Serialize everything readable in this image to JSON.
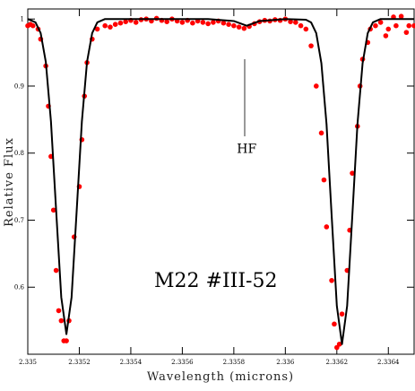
{
  "chart_data": {
    "type": "line",
    "xlabel": "Wavelength (microns)",
    "ylabel": "Relative Flux",
    "annotations": [
      {
        "text": "HF",
        "x": 2.33585,
        "y": 0.8
      },
      {
        "text": "M22 #III-52",
        "x": 2.33573,
        "y": 0.6
      }
    ],
    "xlim": [
      2.335,
      2.3365
    ],
    "ylim": [
      0.5,
      1.015
    ],
    "xticks": [
      2.335,
      2.3352,
      2.3354,
      2.3356,
      2.3358,
      2.336,
      2.3362,
      2.3364
    ],
    "yticks": [
      0.6,
      0.7,
      0.8,
      0.9,
      1
    ],
    "series": [
      {
        "style": "markers",
        "color": "#ff0000",
        "x": [
          2.335,
          2.33501,
          2.33502,
          2.33504,
          2.33505,
          2.33507,
          2.33508,
          2.33509,
          2.3351,
          2.33511,
          2.33512,
          2.33513,
          2.33514,
          2.33515,
          2.33516,
          2.33518,
          2.3352,
          2.33521,
          2.33522,
          2.33523,
          2.33525,
          2.33527,
          2.3353,
          2.33532,
          2.33534,
          2.33536,
          2.33538,
          2.3354,
          2.33542,
          2.33544,
          2.33546,
          2.33548,
          2.3355,
          2.33552,
          2.33554,
          2.33556,
          2.33558,
          2.3356,
          2.33562,
          2.33564,
          2.33566,
          2.33568,
          2.3357,
          2.33572,
          2.33574,
          2.33576,
          2.33578,
          2.3358,
          2.33582,
          2.33584,
          2.33586,
          2.33588,
          2.3359,
          2.33592,
          2.33594,
          2.33596,
          2.33598,
          2.336,
          2.33602,
          2.33604,
          2.33606,
          2.33608,
          2.3361,
          2.33612,
          2.33614,
          2.33615,
          2.33616,
          2.33618,
          2.33619,
          2.3362,
          2.33621,
          2.33622,
          2.33624,
          2.33625,
          2.33626,
          2.33628,
          2.33629,
          2.3363,
          2.33632,
          2.33633,
          2.33635,
          2.33637,
          2.33639,
          2.3364,
          2.33642,
          2.33643,
          2.33645,
          2.33647,
          2.33648,
          2.3365
        ],
        "values": [
          0.99,
          0.992,
          0.99,
          0.985,
          0.97,
          0.93,
          0.87,
          0.795,
          0.715,
          0.625,
          0.565,
          0.55,
          0.52,
          0.52,
          0.55,
          0.675,
          0.75,
          0.82,
          0.885,
          0.935,
          0.97,
          0.985,
          0.99,
          0.988,
          0.992,
          0.994,
          0.996,
          0.998,
          0.995,
          0.999,
          1.0,
          0.997,
          1.001,
          0.998,
          0.996,
          1.0,
          0.997,
          0.995,
          0.998,
          0.994,
          0.997,
          0.995,
          0.993,
          0.995,
          0.997,
          0.994,
          0.992,
          0.99,
          0.988,
          0.986,
          0.989,
          0.993,
          0.996,
          0.998,
          0.997,
          0.999,
          0.998,
          1.0,
          0.996,
          0.995,
          0.99,
          0.985,
          0.96,
          0.9,
          0.83,
          0.76,
          0.69,
          0.61,
          0.545,
          0.51,
          0.515,
          0.56,
          0.625,
          0.685,
          0.77,
          0.84,
          0.9,
          0.94,
          0.965,
          0.985,
          0.99,
          0.995,
          0.975,
          0.985,
          1.003,
          0.99,
          1.004,
          0.98,
          0.99,
          0.99
        ]
      },
      {
        "style": "line",
        "color": "#000000",
        "x": [
          2.335,
          2.33503,
          2.33505,
          2.33507,
          2.33509,
          2.33511,
          2.33513,
          2.33515,
          2.33517,
          2.33519,
          2.33521,
          2.33523,
          2.33525,
          2.33527,
          2.3353,
          2.3355,
          2.3357,
          2.3358,
          2.33585,
          2.3359,
          2.336,
          2.33608,
          2.3361,
          2.33612,
          2.33614,
          2.33616,
          2.33618,
          2.3362,
          2.33622,
          2.33624,
          2.33626,
          2.33628,
          2.3363,
          2.33632,
          2.33634,
          2.33637,
          2.3365
        ],
        "values": [
          1,
          0.995,
          0.979,
          0.936,
          0.847,
          0.715,
          0.585,
          0.53,
          0.585,
          0.715,
          0.847,
          0.936,
          0.979,
          0.995,
          1,
          1,
          1,
          0.997,
          0.99,
          0.997,
          1,
          0.999,
          0.995,
          0.979,
          0.934,
          0.843,
          0.706,
          0.572,
          0.515,
          0.572,
          0.706,
          0.843,
          0.934,
          0.979,
          0.995,
          1,
          1
        ]
      }
    ]
  }
}
